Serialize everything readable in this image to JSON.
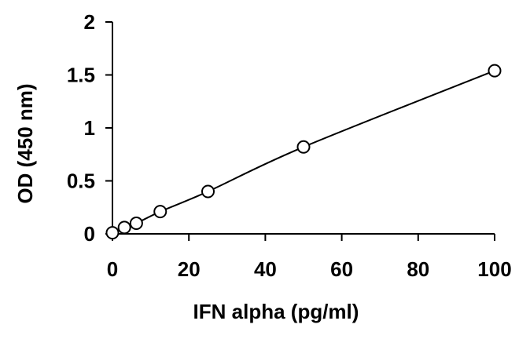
{
  "chart_data": {
    "type": "line",
    "title": "",
    "xlabel": "IFN alpha (pg/ml)",
    "ylabel": "OD (450 nm)",
    "xlim": [
      0,
      100
    ],
    "ylim": [
      0,
      2
    ],
    "x_ticks": [
      0,
      20,
      40,
      60,
      80,
      100
    ],
    "y_ticks": [
      0,
      0.5,
      1,
      1.5,
      2
    ],
    "y_tick_labels": [
      "0",
      "0.5",
      "1",
      "1.5",
      "2"
    ],
    "grid": false,
    "legend": "none",
    "series": [
      {
        "x": [
          0,
          3.125,
          6.25,
          12.5,
          25,
          50,
          100
        ],
        "y": [
          0.01,
          0.06,
          0.1,
          0.21,
          0.4,
          0.82,
          1.54
        ],
        "marker": "open-circle",
        "line_color": "#000000"
      }
    ]
  }
}
